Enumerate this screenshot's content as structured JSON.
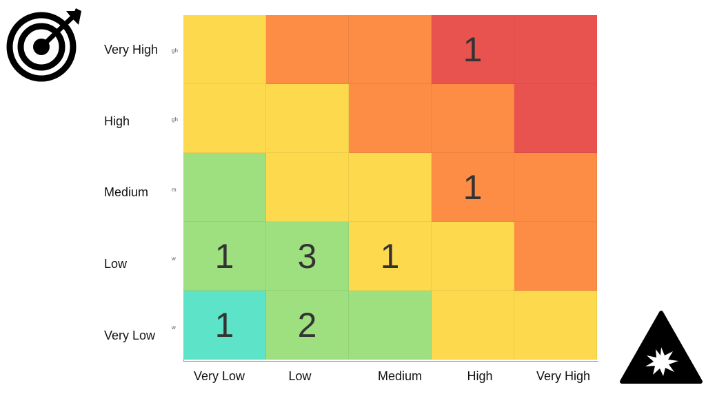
{
  "icons": {
    "top_left": "target-bullseye-icon",
    "bottom_right": "impact-warning-icon"
  },
  "colors": {
    "very_low": "#5de3c8",
    "low": "#9ee080",
    "medium": "#fdd94e",
    "high": "#fd8d45",
    "very_high": "#e8524f"
  },
  "chart_data": {
    "type": "heatmap",
    "title": "",
    "xlabel": "",
    "ylabel": "",
    "x_categories": [
      "Very Low",
      "Low",
      "Medium",
      "High",
      "Very High"
    ],
    "y_categories": [
      "Very High",
      "High",
      "Medium",
      "Low",
      "Very Low"
    ],
    "y_tick_fragments": [
      "gh",
      "gh",
      "m",
      "w",
      "w"
    ],
    "grid": true,
    "legend": "none",
    "cells": [
      [
        "medium",
        "high",
        "high",
        "very_high",
        "very_high"
      ],
      [
        "medium",
        "medium",
        "high",
        "high",
        "very_high"
      ],
      [
        "low",
        "medium",
        "medium",
        "high",
        "high"
      ],
      [
        "low",
        "low",
        "medium",
        "medium",
        "high"
      ],
      [
        "very_low",
        "low",
        "low",
        "medium",
        "medium"
      ]
    ],
    "values": [
      [
        "",
        "",
        "",
        "1",
        ""
      ],
      [
        "",
        "",
        "",
        "",
        ""
      ],
      [
        "",
        "",
        "",
        "1",
        ""
      ],
      [
        "1",
        "3",
        "1",
        "",
        ""
      ],
      [
        "1",
        "2",
        "",
        "",
        ""
      ]
    ]
  }
}
